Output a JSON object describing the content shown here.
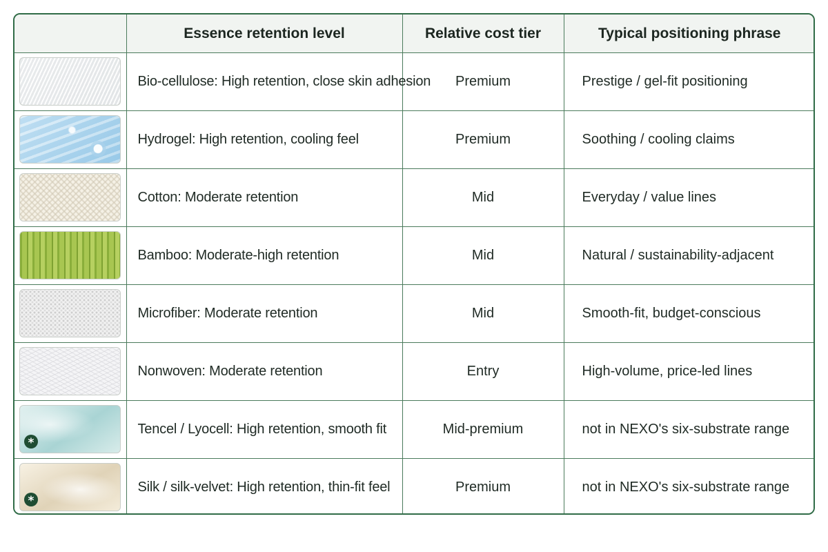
{
  "header": {
    "image_col": "",
    "retention_col": "Essence retention level",
    "cost_col": "Relative cost tier",
    "phrase_col": "Typical positioning phrase"
  },
  "rows": [
    {
      "material": "Bio-cellulose: High retention, close skin adhesion",
      "cost": "Premium",
      "phrase": "Prestige / gel-fit positioning",
      "swatch": "bio-cellulose-swatch",
      "asterisk": ""
    },
    {
      "material": "Hydrogel: High retention, cooling feel",
      "cost": "Premium",
      "phrase": "Soothing / cooling claims",
      "swatch": "hydrogel-swatch",
      "asterisk": ""
    },
    {
      "material": "Cotton: Moderate retention",
      "cost": "Mid",
      "phrase": "Everyday / value lines",
      "swatch": "cotton-swatch",
      "asterisk": ""
    },
    {
      "material": "Bamboo: Moderate-high retention",
      "cost": "Mid",
      "phrase": "Natural / sustainability-adjacent",
      "swatch": "bamboo-swatch",
      "asterisk": ""
    },
    {
      "material": "Microfiber: Moderate retention",
      "cost": "Mid",
      "phrase": "Smooth-fit, budget-conscious",
      "swatch": "microfiber-swatch",
      "asterisk": ""
    },
    {
      "material": "Nonwoven: Moderate retention",
      "cost": "Entry",
      "phrase": "High-volume, price-led lines",
      "swatch": "nonwoven-swatch",
      "asterisk": ""
    },
    {
      "material": "Tencel / Lyocell: High retention, smooth fit",
      "cost": "Mid-premium",
      "phrase": "not in NEXO's six-substrate range",
      "swatch": "tencel-swatch",
      "asterisk": "*"
    },
    {
      "material": "Silk / silk-velvet: High retention, thin-fit feel",
      "cost": "Premium",
      "phrase": "not in NEXO's six-substrate range",
      "swatch": "silk-swatch",
      "asterisk": "*"
    }
  ],
  "colors": {
    "border": "#2f6b46",
    "header_bg": "#f1f4f1",
    "badge": "#1f4d33"
  }
}
